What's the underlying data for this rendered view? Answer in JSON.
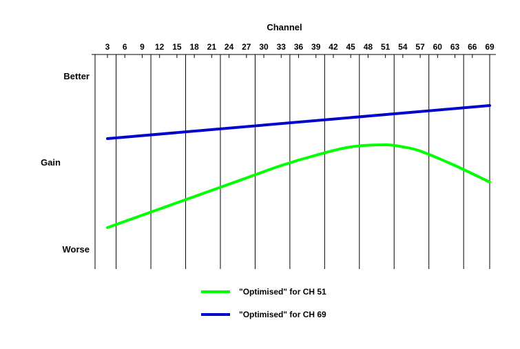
{
  "chart_data": {
    "type": "line",
    "title": "",
    "xlabel": "Channel",
    "ylabel": "Gain",
    "y_top_label": "Better",
    "y_bottom_label": "Worse",
    "x_ticks": [
      3,
      6,
      9,
      12,
      15,
      18,
      21,
      24,
      27,
      30,
      33,
      36,
      39,
      42,
      45,
      48,
      51,
      54,
      57,
      60,
      63,
      66,
      69
    ],
    "x_range": [
      3,
      69
    ],
    "y_range": [
      0,
      1
    ],
    "x_axis_position": "top",
    "grid": "vertical lines every 3 channels (odd tick positions)",
    "series": [
      {
        "name": "\"Optimised\" for CH 51",
        "color": "#00ff00",
        "x": [
          3,
          9,
          15,
          21,
          27,
          33,
          39,
          45,
          51,
          54,
          57,
          63,
          69
        ],
        "values": [
          0.2,
          0.26,
          0.32,
          0.38,
          0.44,
          0.5,
          0.55,
          0.59,
          0.6,
          0.59,
          0.57,
          0.5,
          0.42
        ]
      },
      {
        "name": "\"Optimised\" for CH 69",
        "color": "#0000cc",
        "x": [
          3,
          69
        ],
        "values": [
          0.63,
          0.79
        ]
      }
    ],
    "legend": "bottom-center"
  }
}
